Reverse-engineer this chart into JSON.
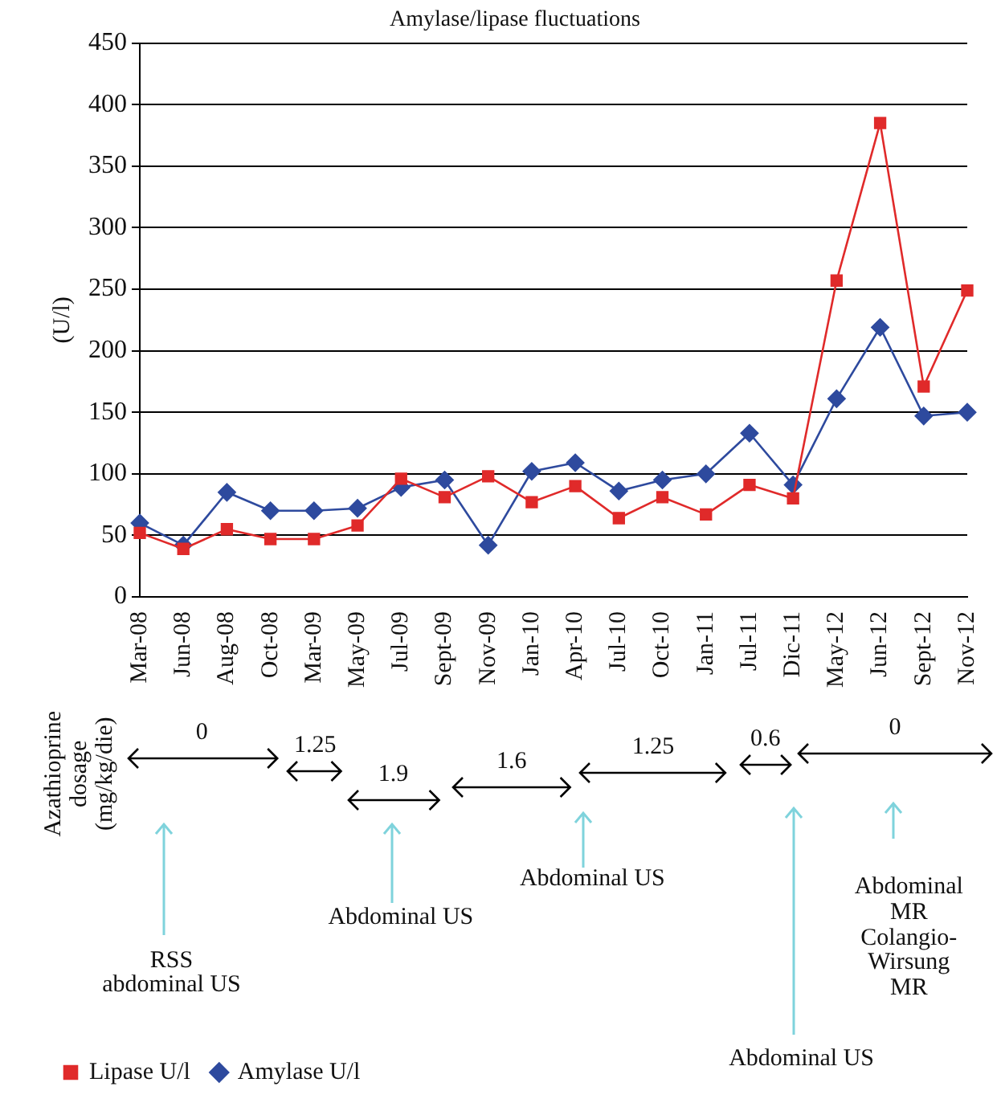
{
  "chart_data": {
    "type": "line",
    "title": "Amylase/lipase fluctuations",
    "ylabel": "(U/l)",
    "categories": [
      "Mar-08",
      "Jun-08",
      "Aug-08",
      "Oct-08",
      "Mar-09",
      "May-09",
      "Jul-09",
      "Sept-09",
      "Nov-09",
      "Jan-10",
      "Apr-10",
      "Jul-10",
      "Oct-10",
      "Jan-11",
      "Jul-11",
      "Dic-11",
      "May-12",
      "Jun-12",
      "Sept-12",
      "Nov-12"
    ],
    "series": [
      {
        "name": "Amylase U/l",
        "color": "#2e4a9e",
        "marker": "diamond",
        "values": [
          60,
          42,
          85,
          70,
          70,
          72,
          89,
          95,
          42,
          102,
          109,
          86,
          95,
          100,
          133,
          91,
          161,
          219,
          147,
          150
        ]
      },
      {
        "name": "Lipase U/l",
        "color": "#e02a2a",
        "marker": "square",
        "values": [
          52,
          39,
          55,
          47,
          47,
          58,
          96,
          81,
          98,
          77,
          90,
          64,
          81,
          67,
          91,
          80,
          257,
          385,
          171,
          249
        ]
      }
    ],
    "ylim": [
      0,
      450
    ],
    "yticks": [
      0,
      50,
      100,
      150,
      200,
      250,
      300,
      350,
      400,
      450
    ],
    "grid": "y",
    "legend": "bottom left",
    "line_style": "solid",
    "annotations": [
      "Azathioprine\ndosage\n(mg/kg/die)",
      "0",
      "1.25",
      "1.9",
      "1.6",
      "1.25",
      "0.6",
      "0",
      "RSS\nabdominal US",
      "Abdominal US",
      "Abdominal US",
      "Abdominal US",
      "Abdominal\nMR\nColangio-\nWirsung\nMR"
    ]
  }
}
